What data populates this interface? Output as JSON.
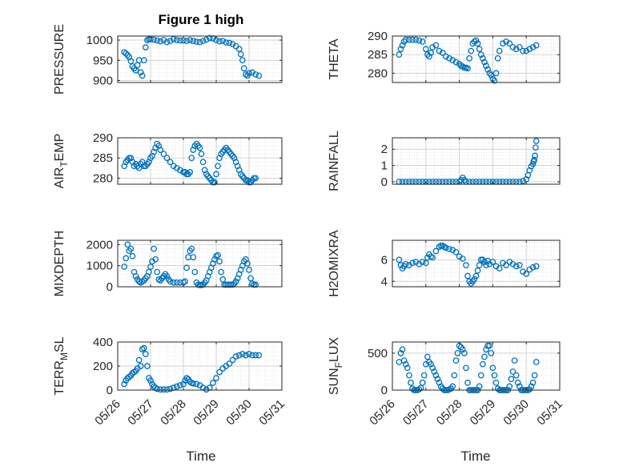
{
  "chart_data": {
    "title": "Figure 1 high",
    "xlabel": "Time",
    "x_ticks": [
      "05/26",
      "05/27",
      "05/28",
      "05/29",
      "05/30",
      "05/31"
    ],
    "x_range": [
      "05/26",
      "05/31"
    ],
    "marker": "open-circle",
    "grid": true,
    "minor_grid": true,
    "colors": {
      "series": "#0072BD",
      "axis": "#262626",
      "grid": "#d9d9d9"
    },
    "panels": [
      {
        "id": "pressure",
        "type": "scatter",
        "ylabel": "PRESSURE",
        "ylim": [
          895,
          1010
        ],
        "yticks": [
          900,
          950,
          1000
        ],
        "x": [
          26.2,
          26.25,
          26.3,
          26.35,
          26.4,
          26.45,
          26.5,
          26.55,
          26.6,
          26.65,
          26.7,
          26.75,
          26.8,
          26.85,
          26.9,
          26.95,
          27.0,
          27.1,
          27.2,
          27.3,
          27.4,
          27.5,
          27.6,
          27.7,
          27.8,
          27.9,
          28.0,
          28.1,
          28.2,
          28.3,
          28.4,
          28.5,
          28.6,
          28.7,
          28.8,
          28.9,
          29.0,
          29.1,
          29.2,
          29.3,
          29.4,
          29.5,
          29.6,
          29.7,
          29.75,
          29.8,
          29.85,
          29.9,
          29.95,
          30.0,
          30.1,
          30.2,
          30.3
        ],
        "y": [
          970,
          967,
          963,
          958,
          948,
          935,
          930,
          925,
          938,
          950,
          920,
          912,
          950,
          982,
          1000,
          1002,
          1002,
          1001,
          999,
          997,
          1000,
          995,
          998,
          1002,
          1000,
          999,
          999,
          998,
          1000,
          998,
          996,
          995,
          998,
          1001,
          1005,
          1004,
          1000,
          997,
          998,
          994,
          993,
          990,
          985,
          978,
          965,
          950,
          930,
          915,
          912,
          918,
          920,
          915,
          912
        ]
      },
      {
        "id": "theta",
        "type": "scatter",
        "ylabel": "THETA",
        "ylim": [
          277.5,
          290
        ],
        "yticks": [
          280,
          285,
          290
        ],
        "x": [
          26.2,
          26.25,
          26.3,
          26.35,
          26.4,
          26.5,
          26.6,
          26.7,
          26.8,
          26.9,
          27.0,
          27.05,
          27.1,
          27.15,
          27.2,
          27.3,
          27.4,
          27.5,
          27.6,
          27.7,
          27.8,
          27.9,
          28.0,
          28.05,
          28.1,
          28.15,
          28.2,
          28.25,
          28.3,
          28.35,
          28.4,
          28.45,
          28.5,
          28.55,
          28.6,
          28.65,
          28.7,
          28.75,
          28.8,
          28.85,
          28.9,
          28.95,
          29.0,
          29.05,
          29.1,
          29.15,
          29.2,
          29.3,
          29.4,
          29.5,
          29.6,
          29.7,
          29.8,
          29.9,
          30.0,
          30.1,
          30.2,
          30.3
        ],
        "y": [
          285,
          286.5,
          287.5,
          288.5,
          289,
          289,
          289,
          289,
          288.8,
          288.5,
          286.5,
          285,
          284.5,
          285.5,
          287,
          287.5,
          286,
          285.5,
          284.5,
          284,
          283.5,
          283,
          282.5,
          282,
          281.8,
          281.5,
          281.5,
          281.3,
          284,
          286,
          288,
          288.5,
          288.8,
          288,
          286.5,
          285,
          284,
          283,
          282,
          281,
          280,
          279.5,
          278.5,
          278,
          280,
          284,
          286,
          288,
          288.5,
          288,
          287,
          286.5,
          287,
          286,
          286,
          286.5,
          287,
          287.5
        ]
      },
      {
        "id": "air_temp",
        "type": "scatter",
        "ylabel": "AIR_TEMP",
        "ylim": [
          278.5,
          290
        ],
        "yticks": [
          280,
          285,
          290
        ],
        "x": [
          26.2,
          26.25,
          26.3,
          26.35,
          26.4,
          26.45,
          26.5,
          26.55,
          26.6,
          26.65,
          26.7,
          26.75,
          26.8,
          26.85,
          26.9,
          26.95,
          27.0,
          27.05,
          27.1,
          27.15,
          27.2,
          27.25,
          27.3,
          27.4,
          27.5,
          27.6,
          27.7,
          27.8,
          27.9,
          28.0,
          28.05,
          28.1,
          28.15,
          28.2,
          28.25,
          28.3,
          28.35,
          28.4,
          28.45,
          28.5,
          28.55,
          28.6,
          28.65,
          28.7,
          28.75,
          28.8,
          28.85,
          28.9,
          28.95,
          29.0,
          29.05,
          29.1,
          29.15,
          29.2,
          29.25,
          29.3,
          29.35,
          29.4,
          29.45,
          29.5,
          29.55,
          29.6,
          29.65,
          29.7,
          29.75,
          29.8,
          29.85,
          29.9,
          29.95,
          30.0,
          30.05,
          30.1,
          30.15,
          30.2
        ],
        "y": [
          283,
          284,
          284.5,
          285,
          285,
          284,
          283,
          283.5,
          283,
          282.5,
          283.5,
          284,
          283,
          283,
          283.5,
          284,
          285,
          285.5,
          286.5,
          287.5,
          288.5,
          288,
          287,
          286,
          285,
          284,
          283,
          282.5,
          282,
          281.5,
          281.5,
          281,
          281,
          281.5,
          285,
          287,
          288,
          288.5,
          288,
          287.5,
          286,
          284,
          282,
          281,
          280.5,
          280,
          279.5,
          279,
          279,
          281,
          283,
          285,
          286,
          286.5,
          287,
          287.5,
          287,
          286.5,
          286,
          285.5,
          285,
          284,
          283,
          282,
          281,
          280.5,
          280,
          279.5,
          279.5,
          279,
          279,
          279.5,
          280,
          280
        ]
      },
      {
        "id": "rainfall",
        "type": "scatter",
        "ylabel": "RAINFALL",
        "ylim": [
          -0.15,
          2.7
        ],
        "yticks": [
          0,
          1,
          2
        ],
        "x": [
          26.2,
          26.3,
          26.4,
          26.5,
          26.6,
          26.7,
          26.8,
          26.9,
          27.0,
          27.1,
          27.2,
          27.3,
          27.4,
          27.5,
          27.6,
          27.7,
          27.8,
          27.9,
          28.0,
          28.05,
          28.1,
          28.15,
          28.2,
          28.3,
          28.4,
          28.5,
          28.6,
          28.7,
          28.8,
          28.9,
          29.0,
          29.1,
          29.2,
          29.3,
          29.4,
          29.5,
          29.6,
          29.7,
          29.8,
          29.9,
          30.0,
          30.05,
          30.1,
          30.15,
          30.2,
          30.22,
          30.24,
          30.26,
          30.28,
          30.3
        ],
        "y": [
          0,
          0,
          0,
          0,
          0,
          0,
          0,
          0,
          0,
          0,
          0,
          0,
          0,
          0,
          0,
          0,
          0,
          0,
          0,
          0.1,
          0.25,
          0.1,
          0,
          0,
          0,
          0,
          0,
          0,
          0,
          0,
          0,
          0,
          0,
          0,
          0,
          0,
          0,
          0,
          0,
          0.05,
          0.15,
          0.4,
          0.7,
          0.95,
          1.1,
          1.25,
          1.35,
          1.6,
          2.1,
          2.5
        ]
      },
      {
        "id": "mixdepth",
        "type": "scatter",
        "ylabel": "MIXDEPTH",
        "ylim": [
          0,
          2200
        ],
        "yticks": [
          0,
          1000,
          2000
        ],
        "x": [
          26.2,
          26.25,
          26.3,
          26.35,
          26.4,
          26.45,
          26.5,
          26.55,
          26.6,
          26.65,
          26.7,
          26.75,
          26.8,
          26.85,
          26.9,
          26.95,
          27.0,
          27.05,
          27.1,
          27.15,
          27.2,
          27.25,
          27.3,
          27.35,
          27.4,
          27.45,
          27.5,
          27.55,
          27.6,
          27.7,
          27.8,
          27.9,
          28.0,
          28.05,
          28.1,
          28.15,
          28.2,
          28.25,
          28.3,
          28.35,
          28.4,
          28.45,
          28.5,
          28.55,
          28.6,
          28.65,
          28.7,
          28.75,
          28.8,
          28.85,
          28.9,
          28.95,
          29.0,
          29.05,
          29.1,
          29.15,
          29.2,
          29.25,
          29.3,
          29.35,
          29.4,
          29.45,
          29.5,
          29.55,
          29.6,
          29.65,
          29.7,
          29.75,
          29.8,
          29.85,
          29.9,
          29.95,
          30.0,
          30.05,
          30.1,
          30.15,
          30.2
        ],
        "y": [
          950,
          1350,
          2000,
          1700,
          1800,
          1450,
          700,
          500,
          350,
          250,
          200,
          250,
          300,
          400,
          500,
          700,
          950,
          1200,
          1800,
          1300,
          700,
          350,
          300,
          400,
          500,
          600,
          500,
          350,
          250,
          200,
          200,
          200,
          200,
          250,
          900,
          1400,
          1700,
          1800,
          1400,
          700,
          200,
          100,
          80,
          80,
          100,
          200,
          300,
          500,
          700,
          900,
          1100,
          1300,
          1450,
          1500,
          1200,
          700,
          350,
          100,
          100,
          100,
          100,
          100,
          100,
          150,
          250,
          400,
          600,
          800,
          1000,
          1200,
          1300,
          1100,
          800,
          400,
          150,
          100,
          100
        ]
      },
      {
        "id": "h2omixra",
        "type": "scatter",
        "ylabel": "H2OMIXRA",
        "ylim": [
          3.5,
          7.8
        ],
        "yticks": [
          4,
          6
        ],
        "x": [
          26.2,
          26.25,
          26.3,
          26.35,
          26.4,
          26.5,
          26.6,
          26.7,
          26.8,
          26.9,
          27.0,
          27.05,
          27.1,
          27.15,
          27.2,
          27.3,
          27.4,
          27.45,
          27.5,
          27.55,
          27.6,
          27.7,
          27.8,
          27.9,
          28.0,
          28.1,
          28.2,
          28.25,
          28.3,
          28.35,
          28.4,
          28.45,
          28.5,
          28.55,
          28.6,
          28.65,
          28.7,
          28.75,
          28.8,
          28.85,
          28.9,
          29.0,
          29.1,
          29.2,
          29.3,
          29.4,
          29.5,
          29.6,
          29.7,
          29.8,
          29.9,
          30.0,
          30.1,
          30.2,
          30.3
        ],
        "y": [
          6,
          5.5,
          5.2,
          5.4,
          5.6,
          5.5,
          5.7,
          5.8,
          5.6,
          5.8,
          5.7,
          6.2,
          6.5,
          6.3,
          6.2,
          6.8,
          7.2,
          7.3,
          7.3,
          7.2,
          7.1,
          7,
          6.9,
          6.7,
          6.3,
          6.1,
          5.5,
          4.5,
          4,
          3.8,
          4,
          4.2,
          4.5,
          5,
          5.5,
          6,
          6,
          5.8,
          5.5,
          5.9,
          5.6,
          5.8,
          5.4,
          5.2,
          5.7,
          5.5,
          5.8,
          5.6,
          5.4,
          5.5,
          4.9,
          4.7,
          5.1,
          5.3,
          5.4
        ]
      },
      {
        "id": "terr_msl",
        "type": "scatter",
        "ylabel": "TERR_MSL",
        "ylim": [
          0,
          400
        ],
        "yticks": [
          0,
          200,
          400
        ],
        "x": [
          26.2,
          26.25,
          26.3,
          26.35,
          26.4,
          26.45,
          26.5,
          26.55,
          26.6,
          26.65,
          26.7,
          26.75,
          26.8,
          26.85,
          26.9,
          26.95,
          27.0,
          27.05,
          27.1,
          27.15,
          27.2,
          27.3,
          27.4,
          27.5,
          27.6,
          27.7,
          27.8,
          27.9,
          28.0,
          28.05,
          28.1,
          28.15,
          28.2,
          28.25,
          28.3,
          28.4,
          28.5,
          28.6,
          28.7,
          28.8,
          28.9,
          29.0,
          29.1,
          29.2,
          29.3,
          29.4,
          29.5,
          29.6,
          29.7,
          29.8,
          29.9,
          30.0,
          30.1,
          30.2,
          30.3
        ],
        "y": [
          50,
          80,
          100,
          110,
          120,
          140,
          150,
          160,
          180,
          250,
          200,
          340,
          350,
          300,
          200,
          100,
          80,
          50,
          30,
          20,
          10,
          5,
          5,
          5,
          10,
          20,
          30,
          40,
          50,
          80,
          100,
          90,
          70,
          60,
          55,
          50,
          40,
          20,
          5,
          20,
          60,
          100,
          150,
          180,
          200,
          220,
          250,
          280,
          290,
          300,
          290,
          300,
          290,
          290,
          290
        ]
      },
      {
        "id": "sunflux",
        "type": "scatter",
        "ylabel": "SUN_FLUX",
        "ylim": [
          0,
          650
        ],
        "yticks": [
          0,
          500
        ],
        "x": [
          26.2,
          26.25,
          26.3,
          26.35,
          26.4,
          26.45,
          26.5,
          26.55,
          26.6,
          26.65,
          26.7,
          26.75,
          26.8,
          26.85,
          26.9,
          26.95,
          27.0,
          27.05,
          27.1,
          27.15,
          27.2,
          27.25,
          27.3,
          27.35,
          27.4,
          27.45,
          27.5,
          27.55,
          27.6,
          27.65,
          27.7,
          27.75,
          27.8,
          27.85,
          27.9,
          27.95,
          28.0,
          28.05,
          28.1,
          28.15,
          28.2,
          28.25,
          28.3,
          28.35,
          28.4,
          28.45,
          28.5,
          28.55,
          28.6,
          28.65,
          28.7,
          28.75,
          28.8,
          28.85,
          28.9,
          28.95,
          29.0,
          29.05,
          29.1,
          29.15,
          29.2,
          29.25,
          29.3,
          29.35,
          29.4,
          29.45,
          29.5,
          29.55,
          29.6,
          29.65,
          29.7,
          29.75,
          29.8,
          29.85,
          29.9,
          29.95,
          30.0,
          30.05,
          30.1,
          30.15,
          30.2,
          30.25,
          30.3
        ],
        "y": [
          380,
          500,
          550,
          400,
          350,
          300,
          200,
          100,
          20,
          0,
          0,
          0,
          10,
          30,
          100,
          200,
          350,
          450,
          380,
          350,
          300,
          250,
          200,
          150,
          100,
          50,
          20,
          0,
          0,
          0,
          10,
          20,
          50,
          200,
          400,
          500,
          600,
          580,
          550,
          500,
          300,
          100,
          0,
          0,
          0,
          0,
          0,
          0,
          50,
          200,
          350,
          450,
          550,
          600,
          600,
          500,
          300,
          200,
          100,
          20,
          0,
          0,
          0,
          0,
          0,
          0,
          50,
          150,
          250,
          400,
          200,
          100,
          50,
          0,
          0,
          0,
          0,
          0,
          10,
          50,
          100,
          200,
          380
        ]
      }
    ]
  }
}
